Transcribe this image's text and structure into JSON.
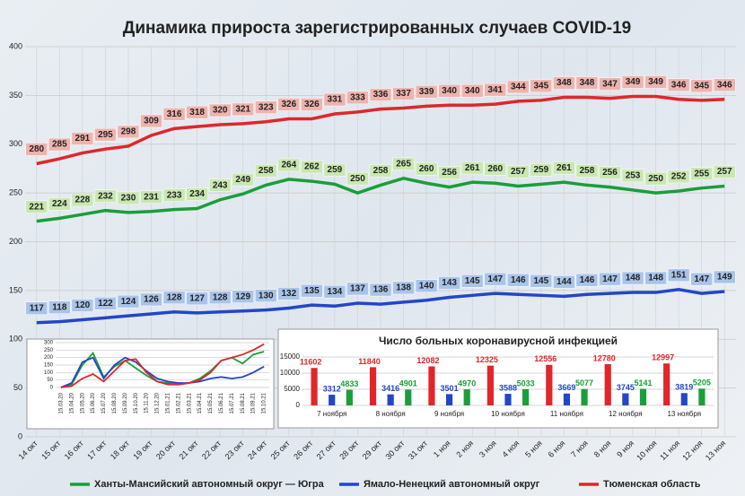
{
  "chart_data": [
    {
      "type": "line",
      "title": "Динамика прироста зарегистрированных случаев COVID-19",
      "categories": [
        "14 окт",
        "15 окт",
        "16 окт",
        "17 окт",
        "18 окт",
        "19 окт",
        "20 окт",
        "21 окт",
        "22 окт",
        "23 окт",
        "24 окт",
        "25 окт",
        "26 окт",
        "27 окт",
        "28 окт",
        "29 окт",
        "30 окт",
        "31 окт",
        "1 ноя",
        "2 ноя",
        "3 ноя",
        "4 ноя",
        "5 ноя",
        "6 ноя",
        "7 ноя",
        "8 ноя",
        "9 ноя",
        "10 ноя",
        "11 ноя",
        "12 ноя",
        "13 ноя"
      ],
      "series": [
        {
          "name": "Ханты-Мансийский автономный округ — Югра",
          "color": "#1a9e3a",
          "label_fill": "#c9e8b0",
          "values": [
            221,
            224,
            228,
            232,
            230,
            231,
            233,
            234,
            243,
            249,
            258,
            264,
            262,
            259,
            250,
            258,
            265,
            260,
            256,
            261,
            260,
            257,
            259,
            261,
            258,
            256,
            253,
            250,
            252,
            255,
            257
          ]
        },
        {
          "name": "Ямало-Ненецкий автономный округ",
          "color": "#2346c8",
          "label_fill": "#a9c4ea",
          "values": [
            117,
            118,
            120,
            122,
            124,
            126,
            128,
            127,
            128,
            129,
            130,
            132,
            135,
            134,
            137,
            136,
            138,
            140,
            143,
            145,
            147,
            146,
            145,
            144,
            146,
            147,
            148,
            148,
            151,
            147,
            149
          ]
        },
        {
          "name": "Тюменская область",
          "color": "#e0262a",
          "label_fill": "#efb3ae",
          "values": [
            280,
            285,
            291,
            295,
            298,
            309,
            316,
            318,
            320,
            321,
            323,
            326,
            326,
            331,
            333,
            336,
            337,
            339,
            340,
            340,
            341,
            344,
            345,
            348,
            348,
            347,
            349,
            349,
            346,
            345,
            346
          ]
        }
      ],
      "ylim": [
        0,
        400
      ],
      "yticks": [
        0,
        50,
        100,
        150,
        200,
        250,
        300,
        350,
        400
      ],
      "grid": true,
      "legend": "bottom",
      "value_labels_shown": true
    },
    {
      "type": "line",
      "categories": [
        "15.03.20",
        "15.04.20",
        "15.05.20",
        "15.06.20",
        "15.07.20",
        "15.08.20",
        "15.09.20",
        "15.10.20",
        "15.11.20",
        "15.12.20",
        "15.01.21",
        "15.02.21",
        "15.03.21",
        "15.04.21",
        "15.05.21",
        "15.06.21",
        "15.07.21",
        "15.08.21",
        "15.09.21",
        "15.10.21"
      ],
      "series": [
        {
          "color": "#1a9e3a",
          "values": [
            0,
            20,
            150,
            230,
            70,
            140,
            180,
            130,
            80,
            40,
            30,
            20,
            30,
            60,
            110,
            180,
            200,
            160,
            220,
            240
          ]
        },
        {
          "color": "#2346c8",
          "values": [
            0,
            30,
            170,
            200,
            60,
            150,
            200,
            170,
            110,
            60,
            40,
            30,
            30,
            40,
            60,
            70,
            60,
            70,
            100,
            140
          ]
        },
        {
          "color": "#e0262a",
          "values": [
            0,
            10,
            60,
            90,
            40,
            110,
            180,
            190,
            100,
            40,
            20,
            20,
            30,
            50,
            100,
            180,
            200,
            220,
            250,
            290
          ]
        }
      ],
      "ylim": [
        0,
        300
      ],
      "yticks": [
        0,
        50,
        100,
        150,
        200,
        250,
        300
      ],
      "grid": true,
      "value_labels_shown": false
    },
    {
      "type": "bar",
      "title": "Число больных коронавирусной инфекцией",
      "categories": [
        "7 ноября",
        "8 ноября",
        "9 ноября",
        "10 ноября",
        "11 ноября",
        "12 ноября",
        "13 ноября"
      ],
      "series": [
        {
          "color": "#e0262a",
          "values": [
            11602,
            11840,
            12082,
            12325,
            12556,
            12780,
            12997
          ]
        },
        {
          "color": "#2346c8",
          "values": [
            3312,
            3416,
            3501,
            3588,
            3669,
            3745,
            3819
          ]
        },
        {
          "color": "#1a9e3a",
          "values": [
            4833,
            4901,
            4970,
            5033,
            5077,
            5141,
            5205
          ]
        }
      ],
      "ylim": [
        0,
        15000
      ],
      "yticks": [
        0,
        5000,
        10000,
        15000
      ],
      "grid": true,
      "value_labels_shown": true
    }
  ]
}
